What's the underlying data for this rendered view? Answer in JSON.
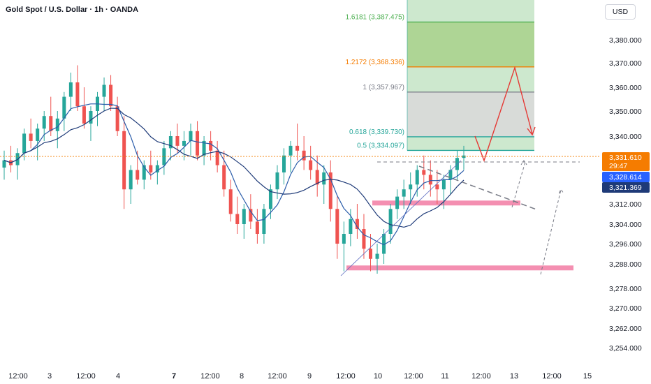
{
  "header": {
    "title": "Gold Spot / U.S. Dollar · 1h · OANDA",
    "currency_button": "USD"
  },
  "colors": {
    "up": "#26a69a",
    "down": "#ef5350",
    "ma_fast": "#2a5caa",
    "ma_slow": "#1e3a78",
    "fib_green": "#4caf50",
    "fib_orange": "#f57c00",
    "fib_gray": "#787b86",
    "support": "#f48fb1",
    "arrow": "#e53935",
    "current_price_tag": "#f57c00",
    "ma_tag": "#2962ff",
    "ma2_tag": "#1e3a78"
  },
  "chart_data": {
    "type": "candlestick",
    "title": "Gold Spot / U.S. Dollar · 1h · OANDA",
    "ylim": [
      3250,
      3390
    ],
    "y_ticks": [
      "3,380.000",
      "3,370.000",
      "3,360.000",
      "3,350.000",
      "3,340.000",
      "3,312.000",
      "3,304.000",
      "3,296.000",
      "3,288.000",
      "3,278.000",
      "3,270.000",
      "3,262.000",
      "3,254.000"
    ],
    "x_ticks": [
      "12:00",
      "3",
      "12:00",
      "4",
      "7",
      "12:00",
      "8",
      "12:00",
      "9",
      "12:00",
      "10",
      "12:00",
      "11",
      "12:00",
      "13",
      "12:00",
      "15"
    ],
    "fib_levels": [
      {
        "label": "1.6181 (3,387.475)",
        "value": 3387.475,
        "color": "#4caf50"
      },
      {
        "label": "1.2172 (3,368.336)",
        "value": 3368.336,
        "color": "#f57c00"
      },
      {
        "label": "1 (3,357.967)",
        "value": 3357.967,
        "color": "#787b86"
      },
      {
        "label": "0.618 (3,339.730)",
        "value": 3339.73,
        "color": "#26a69a"
      },
      {
        "label": "0.5 (3,334.097)",
        "value": 3334.097,
        "color": "#26a69a"
      }
    ],
    "price_tags": [
      {
        "label": "3,331.610",
        "sub": "29:47",
        "value": 3331.61,
        "color": "#f57c00"
      },
      {
        "label": "3,328.614",
        "value": 3328.614,
        "color": "#2962ff"
      },
      {
        "label": "3,321.369",
        "value": 3321.369,
        "color": "#1e3a78"
      }
    ],
    "support_zones": [
      3312.5,
      3286.5
    ],
    "candles": [
      [
        3327,
        3334,
        3322,
        3330
      ],
      [
        3330,
        3336,
        3325,
        3328
      ],
      [
        3328,
        3335,
        3322,
        3333
      ],
      [
        3333,
        3343,
        3330,
        3341
      ],
      [
        3341,
        3347,
        3335,
        3338
      ],
      [
        3338,
        3345,
        3330,
        3343
      ],
      [
        3343,
        3350,
        3338,
        3348
      ],
      [
        3348,
        3356,
        3340,
        3342
      ],
      [
        3342,
        3350,
        3335,
        3347
      ],
      [
        3347,
        3358,
        3342,
        3356
      ],
      [
        3356,
        3366,
        3350,
        3362
      ],
      [
        3362,
        3369,
        3350,
        3352
      ],
      [
        3352,
        3360,
        3343,
        3345
      ],
      [
        3345,
        3352,
        3338,
        3350
      ],
      [
        3350,
        3358,
        3344,
        3356
      ],
      [
        3356,
        3364,
        3350,
        3361
      ],
      [
        3361,
        3365,
        3350,
        3352
      ],
      [
        3352,
        3356,
        3340,
        3342
      ],
      [
        3342,
        3348,
        3310,
        3318
      ],
      [
        3318,
        3328,
        3312,
        3326
      ],
      [
        3326,
        3334,
        3320,
        3322
      ],
      [
        3322,
        3330,
        3318,
        3328
      ],
      [
        3328,
        3334,
        3322,
        3325
      ],
      [
        3325,
        3330,
        3320,
        3328
      ],
      [
        3328,
        3338,
        3324,
        3335
      ],
      [
        3335,
        3342,
        3330,
        3340
      ],
      [
        3340,
        3345,
        3333,
        3336
      ],
      [
        3336,
        3342,
        3330,
        3338
      ],
      [
        3338,
        3345,
        3332,
        3342
      ],
      [
        3342,
        3346,
        3330,
        3332
      ],
      [
        3332,
        3340,
        3328,
        3338
      ],
      [
        3338,
        3342,
        3330,
        3334
      ],
      [
        3334,
        3338,
        3325,
        3328
      ],
      [
        3328,
        3334,
        3315,
        3318
      ],
      [
        3318,
        3322,
        3305,
        3308
      ],
      [
        3308,
        3315,
        3300,
        3304
      ],
      [
        3304,
        3312,
        3298,
        3310
      ],
      [
        3310,
        3316,
        3302,
        3305
      ],
      [
        3305,
        3310,
        3296,
        3300
      ],
      [
        3300,
        3312,
        3296,
        3310
      ],
      [
        3310,
        3320,
        3306,
        3318
      ],
      [
        3318,
        3328,
        3314,
        3325
      ],
      [
        3325,
        3335,
        3320,
        3332
      ],
      [
        3332,
        3338,
        3325,
        3336
      ],
      [
        3336,
        3345,
        3330,
        3334
      ],
      [
        3334,
        3340,
        3326,
        3330
      ],
      [
        3330,
        3336,
        3322,
        3326
      ],
      [
        3326,
        3332,
        3315,
        3320
      ],
      [
        3320,
        3328,
        3312,
        3325
      ],
      [
        3325,
        3330,
        3305,
        3310
      ],
      [
        3310,
        3315,
        3290,
        3296
      ],
      [
        3296,
        3305,
        3285,
        3300
      ],
      [
        3300,
        3310,
        3295,
        3306
      ],
      [
        3306,
        3312,
        3298,
        3302
      ],
      [
        3302,
        3308,
        3290,
        3294
      ],
      [
        3294,
        3300,
        3285,
        3290
      ],
      [
        3290,
        3296,
        3284,
        3292
      ],
      [
        3292,
        3302,
        3288,
        3300
      ],
      [
        3300,
        3312,
        3296,
        3310
      ],
      [
        3310,
        3318,
        3306,
        3315
      ],
      [
        3315,
        3322,
        3310,
        3318
      ],
      [
        3318,
        3325,
        3312,
        3320
      ],
      [
        3320,
        3328,
        3315,
        3326
      ],
      [
        3326,
        3332,
        3318,
        3324
      ],
      [
        3324,
        3330,
        3315,
        3320
      ],
      [
        3320,
        3326,
        3312,
        3318
      ],
      [
        3318,
        3324,
        3310,
        3322
      ],
      [
        3322,
        3328,
        3316,
        3326
      ],
      [
        3326,
        3334,
        3322,
        3331
      ],
      [
        3331,
        3336,
        3326,
        3332
      ]
    ]
  },
  "candle_count_note": ""
}
